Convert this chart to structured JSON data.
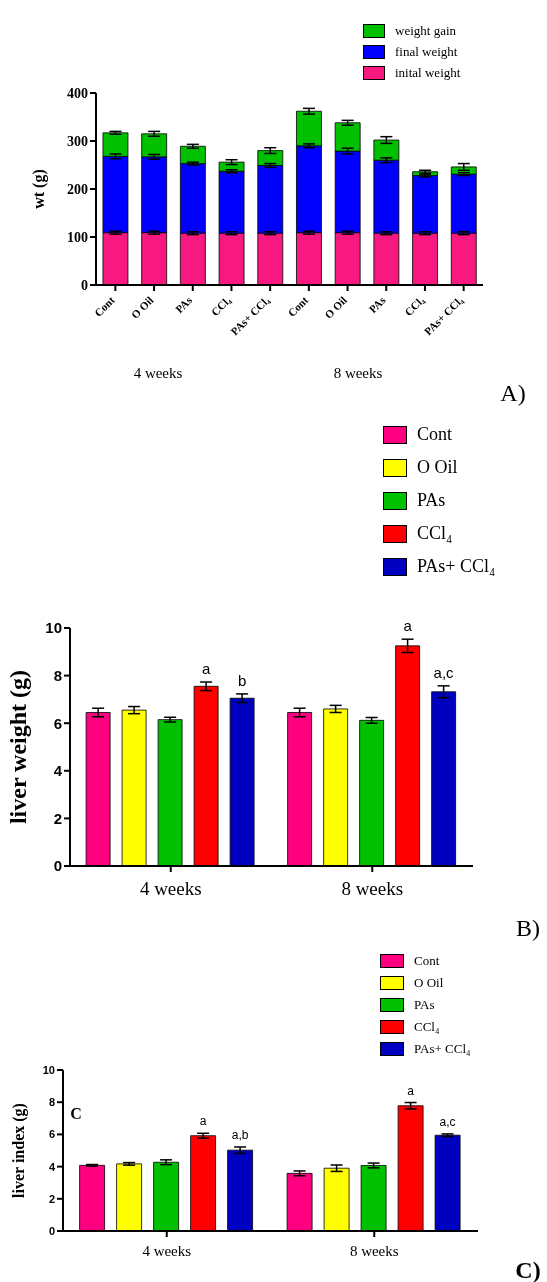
{
  "chart_data": [
    {
      "type": "bar",
      "stacked": true,
      "ylabel": "wt (g)",
      "categories": [
        "Cont",
        "O Oil",
        "PAs",
        "CCl₄",
        "PAs+ CCl₄",
        "Cont",
        "O Oil",
        "PAs",
        "CCl₄",
        "PAs+ CCl₄"
      ],
      "series": [
        {
          "name": "inital weight",
          "color": "#f7197f",
          "values": [
            109,
            109,
            108,
            108,
            108,
            109,
            109,
            108,
            108,
            108
          ],
          "errors": [
            3,
            3,
            3,
            3,
            3,
            3,
            3,
            3,
            3,
            3
          ]
        },
        {
          "name": "final weight",
          "color": "#0000ff",
          "values": [
            159,
            158,
            145,
            129,
            141,
            181,
            170,
            152,
            120,
            123
          ],
          "errors": [
            5,
            5,
            3,
            3,
            4,
            4,
            6,
            5,
            3,
            3
          ]
        },
        {
          "name": "weight gain",
          "color": "#00c000",
          "values": [
            49,
            48,
            36,
            19,
            31,
            72,
            59,
            42,
            8,
            15
          ],
          "errors": [
            3,
            5,
            4,
            5,
            6,
            6,
            5,
            7,
            3,
            7
          ]
        }
      ],
      "ylim": [
        0,
        400
      ],
      "yticks": [
        0,
        100,
        200,
        300,
        400
      ],
      "legend": "top right",
      "annotations": [
        "4 weeks",
        "8 weeks",
        "A)"
      ]
    },
    {
      "type": "bar",
      "ylabel": "liver weight (g)",
      "categories": [
        "4 weeks",
        "8 weeks"
      ],
      "series": [
        {
          "name": "Cont",
          "color": "#ff0080",
          "values": [
            6.45,
            6.45
          ],
          "errors": [
            0.18,
            0.18
          ]
        },
        {
          "name": "O Oil",
          "color": "#ffff00",
          "values": [
            6.55,
            6.6
          ],
          "errors": [
            0.15,
            0.15
          ]
        },
        {
          "name": "PAs",
          "color": "#00c000",
          "values": [
            6.15,
            6.12
          ],
          "errors": [
            0.1,
            0.12
          ]
        },
        {
          "name": "CCl₄",
          "color": "#ff0000",
          "values": [
            7.55,
            9.25
          ],
          "errors": [
            0.18,
            0.28
          ],
          "value_labels": [
            "a",
            "a"
          ]
        },
        {
          "name": "PAs+ CCl₄",
          "color": "#0000c0",
          "values": [
            7.05,
            7.32
          ],
          "errors": [
            0.18,
            0.25
          ],
          "value_labels": [
            "b",
            "a,c"
          ]
        }
      ],
      "ylim": [
        0,
        10
      ],
      "yticks": [
        0,
        2,
        4,
        6,
        8,
        10
      ],
      "legend": "top right",
      "annotations": [
        "B)"
      ]
    },
    {
      "type": "bar",
      "ylabel": "liver index (g)",
      "categories": [
        "4 weeks",
        "8 weeks"
      ],
      "series": [
        {
          "name": "Cont",
          "color": "#ff0080",
          "values": [
            4.08,
            3.58
          ],
          "errors": [
            0.05,
            0.15
          ]
        },
        {
          "name": "O Oil",
          "color": "#ffff00",
          "values": [
            4.17,
            3.9
          ],
          "errors": [
            0.08,
            0.2
          ]
        },
        {
          "name": "PAs",
          "color": "#00c000",
          "values": [
            4.27,
            4.07
          ],
          "errors": [
            0.15,
            0.15
          ]
        },
        {
          "name": "CCl₄",
          "color": "#ff0000",
          "values": [
            5.92,
            7.78
          ],
          "errors": [
            0.15,
            0.2
          ],
          "value_labels": [
            "a",
            "a"
          ]
        },
        {
          "name": "PAs+ CCl₄",
          "color": "#0000c0",
          "values": [
            5.02,
            5.95
          ],
          "errors": [
            0.2,
            0.08
          ],
          "value_labels": [
            "a,b",
            "a,c"
          ]
        }
      ],
      "ylim": [
        0,
        10
      ],
      "yticks": [
        0,
        2,
        4,
        6,
        8,
        10
      ],
      "legend": "top right",
      "annotations": [
        "C",
        "C)"
      ]
    }
  ]
}
